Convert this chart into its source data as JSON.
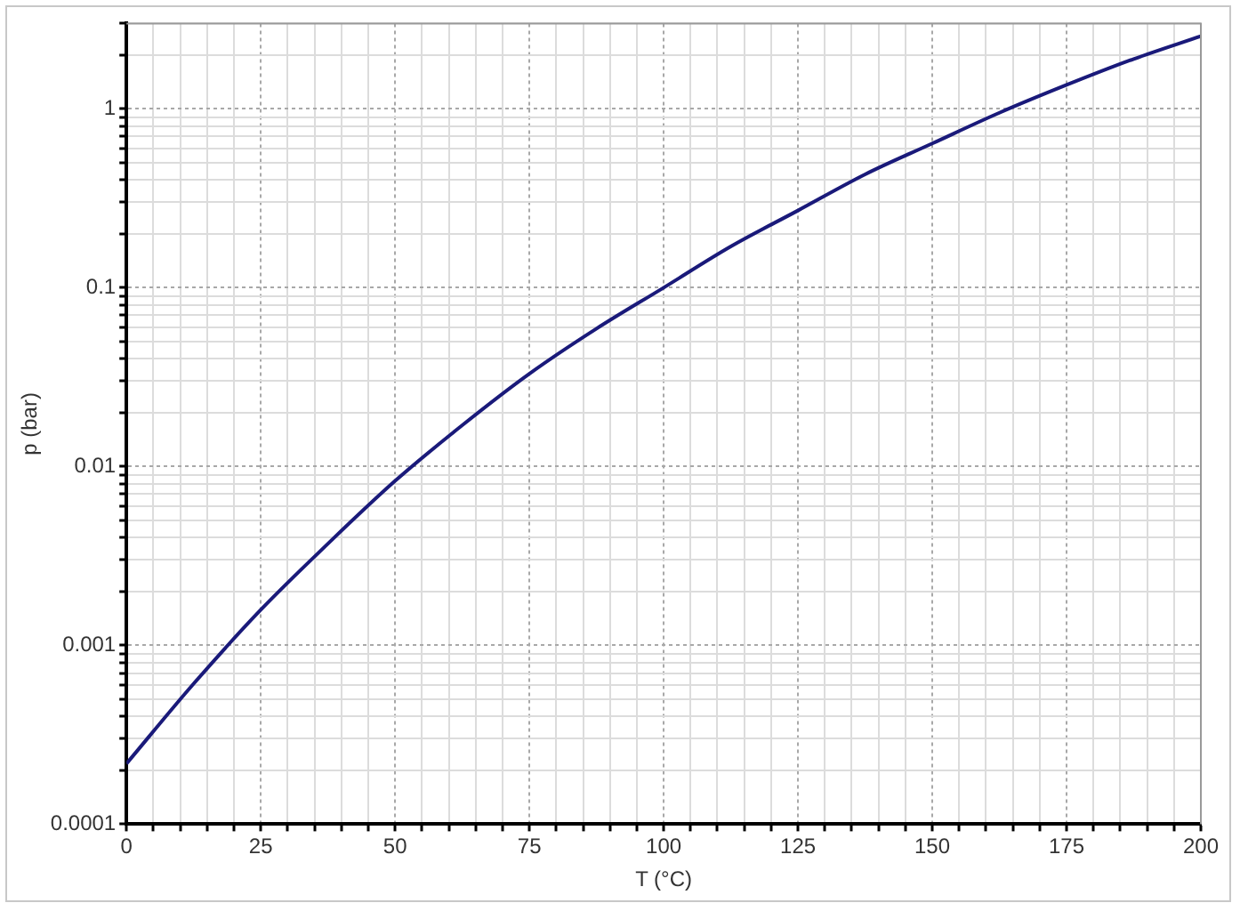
{
  "chart_data": {
    "type": "line",
    "xlabel": "T (°C)",
    "ylabel": "p (bar)",
    "x": [
      0,
      12.5,
      25,
      37.5,
      50,
      62.5,
      75,
      87.5,
      100,
      112.5,
      125,
      137.5,
      150,
      162.5,
      175,
      187.5,
      200
    ],
    "series": [
      {
        "color": "#1a1a7a",
        "values": [
          0.000218,
          0.00061,
          0.00158,
          0.0037,
          0.0083,
          0.017,
          0.033,
          0.059,
          0.1,
          0.17,
          0.27,
          0.43,
          0.64,
          0.95,
          1.36,
          1.9,
          2.55
        ]
      }
    ],
    "log": "y",
    "grid": true,
    "legend": false,
    "marker": "none",
    "line_style": "solid",
    "xlim": [
      0,
      200
    ],
    "ylim": [
      0.0001,
      3
    ],
    "xticks": [
      0,
      {
        "value": 5,
        "label": null
      },
      {
        "value": 10,
        "label": null
      },
      {
        "value": 15,
        "label": null
      },
      {
        "value": 20,
        "label": null
      },
      25,
      {
        "value": 30,
        "label": null
      },
      {
        "value": 35,
        "label": null
      },
      {
        "value": 40,
        "label": null
      },
      {
        "value": 45,
        "label": null
      },
      50,
      {
        "value": 55,
        "label": null
      },
      {
        "value": 60,
        "label": null
      },
      {
        "value": 65,
        "label": null
      },
      {
        "value": 70,
        "label": null
      },
      75,
      {
        "value": 80,
        "label": null
      },
      {
        "value": 85,
        "label": null
      },
      {
        "value": 90,
        "label": null
      },
      {
        "value": 95,
        "label": null
      },
      100,
      {
        "value": 105,
        "label": null
      },
      {
        "value": 110,
        "label": null
      },
      {
        "value": 115,
        "label": null
      },
      {
        "value": 120,
        "label": null
      },
      125,
      {
        "value": 130,
        "label": null
      },
      {
        "value": 135,
        "label": null
      },
      {
        "value": 140,
        "label": null
      },
      {
        "value": 145,
        "label": null
      },
      150,
      {
        "value": 155,
        "label": null
      },
      {
        "value": 160,
        "label": null
      },
      {
        "value": 165,
        "label": null
      },
      {
        "value": 170,
        "label": null
      },
      175,
      {
        "value": 180,
        "label": null
      },
      {
        "value": 185,
        "label": null
      },
      {
        "value": 190,
        "label": null
      },
      {
        "value": 195,
        "label": null
      },
      200
    ],
    "yticks": [
      0.0001,
      {
        "value": 0.0002,
        "label": null
      },
      {
        "value": 0.0003,
        "label": null
      },
      {
        "value": 0.0004,
        "label": null
      },
      {
        "value": 0.0005,
        "label": null
      },
      {
        "value": 0.0006,
        "label": null
      },
      {
        "value": 0.0007,
        "label": null
      },
      {
        "value": 0.0008,
        "label": null
      },
      {
        "value": 0.0009,
        "label": null
      },
      0.001,
      {
        "value": 0.002,
        "label": null
      },
      {
        "value": 0.003,
        "label": null
      },
      {
        "value": 0.004,
        "label": null
      },
      {
        "value": 0.005,
        "label": null
      },
      {
        "value": 0.006,
        "label": null
      },
      {
        "value": 0.007,
        "label": null
      },
      {
        "value": 0.008,
        "label": null
      },
      {
        "value": 0.009,
        "label": null
      },
      0.01,
      {
        "value": 0.02,
        "label": null
      },
      {
        "value": 0.03,
        "label": null
      },
      {
        "value": 0.04,
        "label": null
      },
      {
        "value": 0.05,
        "label": null
      },
      {
        "value": 0.06,
        "label": null
      },
      {
        "value": 0.07,
        "label": null
      },
      {
        "value": 0.08,
        "label": null
      },
      {
        "value": 0.09,
        "label": null
      },
      0.1,
      {
        "value": 0.2,
        "label": null
      },
      {
        "value": 0.3,
        "label": null
      },
      {
        "value": 0.4,
        "label": null
      },
      {
        "value": 0.5,
        "label": null
      },
      {
        "value": 0.6,
        "label": null
      },
      {
        "value": 0.7,
        "label": null
      },
      {
        "value": 0.8,
        "label": null
      },
      {
        "value": 0.9,
        "label": null
      },
      1,
      {
        "value": 2,
        "label": null
      },
      {
        "value": 3,
        "label": null
      }
    ]
  }
}
